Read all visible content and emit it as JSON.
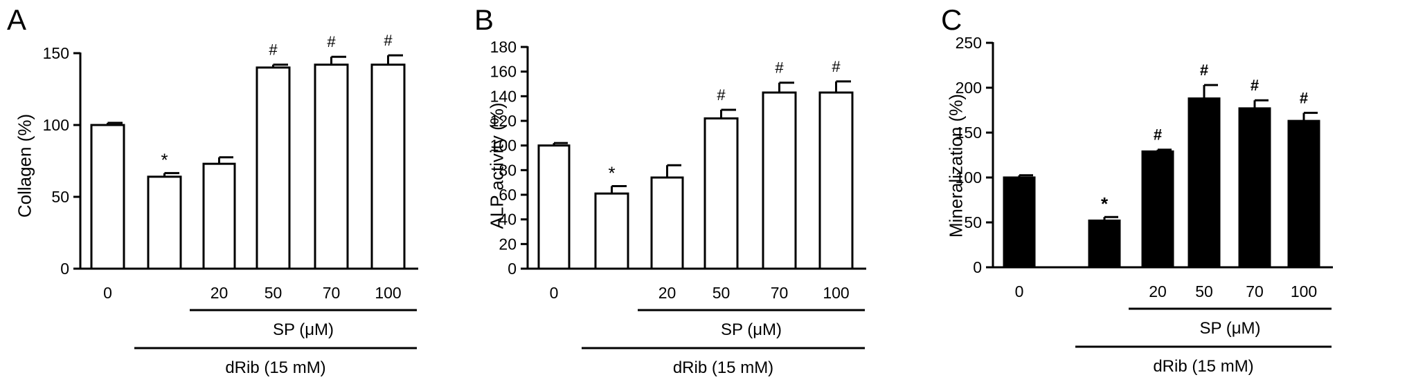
{
  "chart_data": [
    {
      "type": "bar",
      "panel": "A",
      "ylabel": "Collagen (%)",
      "categories": [
        "0",
        "",
        "20",
        "50",
        "70",
        "100"
      ],
      "values": [
        100,
        64,
        73,
        140,
        142,
        142
      ],
      "errors": [
        1.5,
        2.5,
        4.5,
        2,
        5.5,
        6.5
      ],
      "significance": [
        "",
        "*",
        "",
        "#",
        "#",
        "#"
      ],
      "ylim": [
        0,
        150
      ],
      "yticks": [
        0,
        50,
        100,
        150
      ],
      "bar_fill": "#ffffff",
      "bar_stroke": "#000000",
      "brackets": [
        {
          "label": "SP (μM)",
          "from_category": 2,
          "to_category": 5
        },
        {
          "label": "dRib (15 mM)",
          "from_category": 1,
          "to_category": 5
        }
      ]
    },
    {
      "type": "bar",
      "panel": "B",
      "ylabel": "ALP activity (%)",
      "categories": [
        "0",
        "",
        "20",
        "50",
        "70",
        "100"
      ],
      "values": [
        100,
        61,
        74,
        122,
        143,
        143
      ],
      "errors": [
        2,
        6,
        10,
        7,
        8,
        9
      ],
      "significance": [
        "",
        "*",
        "",
        "#",
        "#",
        "#"
      ],
      "ylim": [
        0,
        180
      ],
      "yticks": [
        0,
        20,
        40,
        60,
        80,
        100,
        120,
        140,
        160,
        180
      ],
      "bar_fill": "#ffffff",
      "bar_stroke": "#000000",
      "brackets": [
        {
          "label": "SP (μM)",
          "from_category": 2,
          "to_category": 5
        },
        {
          "label": "dRib (15 mM)",
          "from_category": 1,
          "to_category": 5
        }
      ]
    },
    {
      "type": "bar",
      "panel": "C",
      "ylabel": "Mineralization (%)",
      "categories": [
        "0",
        "",
        "20",
        "50",
        "70",
        "100"
      ],
      "values": [
        100,
        52,
        129,
        188,
        177,
        163
      ],
      "errors": [
        2.5,
        4,
        2,
        15,
        9,
        9
      ],
      "significance": [
        "",
        "*",
        "#",
        "#",
        "#",
        "#"
      ],
      "ylim": [
        0,
        250
      ],
      "yticks": [
        0,
        50,
        100,
        150,
        200,
        250
      ],
      "bar_fill": "#000000",
      "bar_stroke": "#000000",
      "brackets": [
        {
          "label": "SP (μM)",
          "from_category": 2,
          "to_category": 5
        },
        {
          "label": "dRib (15 mM)",
          "from_category": 1,
          "to_category": 5
        }
      ]
    }
  ]
}
